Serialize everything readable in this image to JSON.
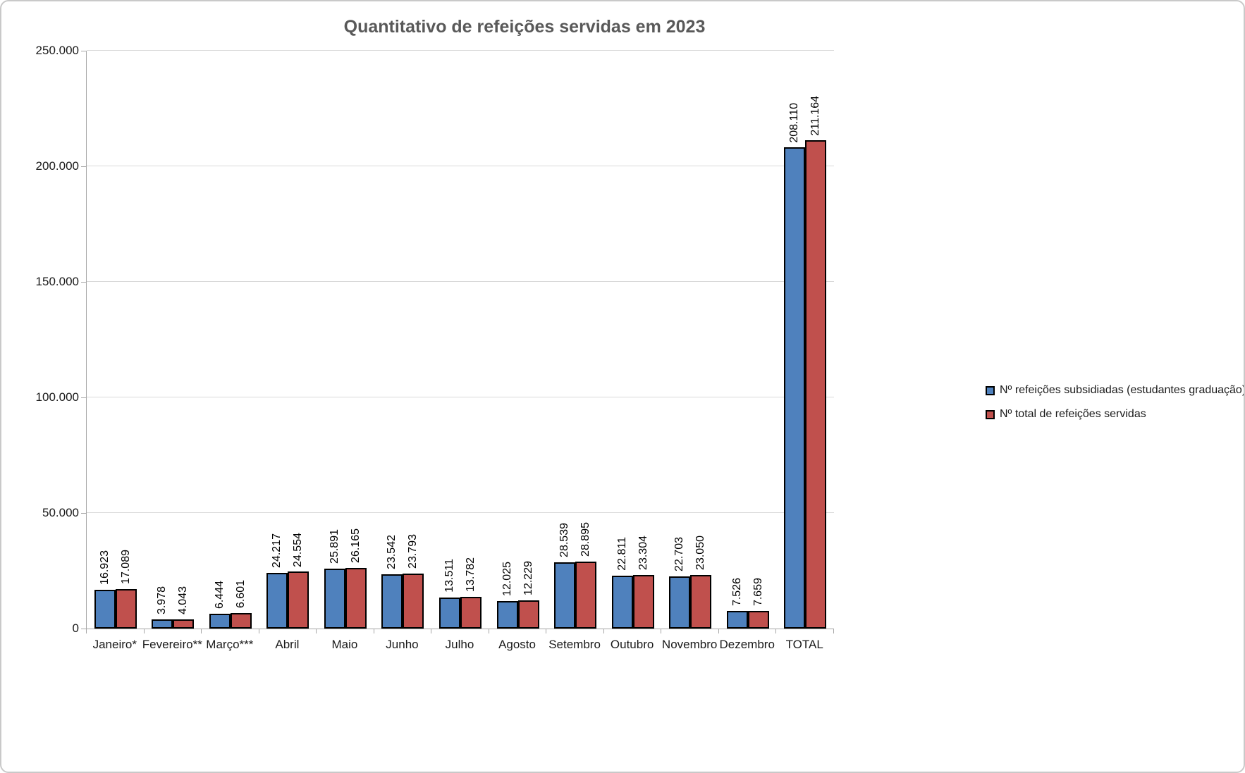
{
  "chart_data": {
    "type": "bar",
    "title": "Quantitativo de refeições servidas em 2023",
    "categories": [
      "Janeiro*",
      "Fevereiro**",
      "Março***",
      "Abril",
      "Maio",
      "Junho",
      "Julho",
      "Agosto",
      "Setembro",
      "Outubro",
      "Novembro",
      "Dezembro",
      "TOTAL"
    ],
    "series": [
      {
        "name": "Nº refeições subsidiadas (estudantes graduação)",
        "color": "#4F81BD",
        "values": [
          16923,
          3978,
          6444,
          24217,
          25891,
          23542,
          13511,
          12025,
          28539,
          22811,
          22703,
          7526,
          208110
        ],
        "labels": [
          "16.923",
          "3.978",
          "6.444",
          "24.217",
          "25.891",
          "23.542",
          "13.511",
          "12.025",
          "28.539",
          "22.811",
          "22.703",
          "7.526",
          "208.110"
        ]
      },
      {
        "name": "Nº total de refeições servidas",
        "color": "#C0504D",
        "values": [
          17089,
          4043,
          6601,
          24554,
          26165,
          23793,
          13782,
          12229,
          28895,
          23304,
          23050,
          7659,
          211164
        ],
        "labels": [
          "17.089",
          "4.043",
          "6.601",
          "24.554",
          "26.165",
          "23.793",
          "13.782",
          "12.229",
          "28.895",
          "23.304",
          "23.050",
          "7.659",
          "211.164"
        ]
      }
    ],
    "y_axis": {
      "min": 0,
      "max": 250000,
      "tick_interval": 50000,
      "tick_labels": [
        "0",
        "50.000",
        "100.000",
        "150.000",
        "200.000",
        "250.000"
      ]
    },
    "grid": true,
    "legend_position": "right",
    "bar_border_color": "#000000",
    "title_color": "#595959"
  }
}
